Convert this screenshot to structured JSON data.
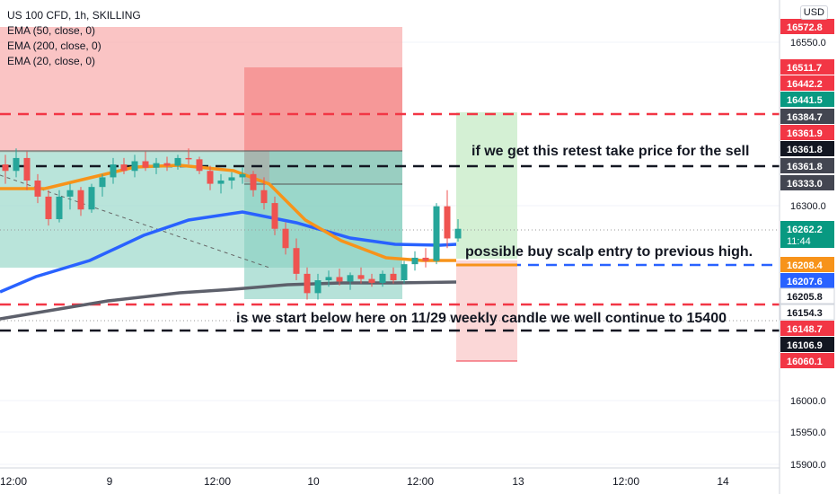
{
  "legend": {
    "title": "US 100 CFD, 1h, SKILLING",
    "ema1": "EMA (50, close, 0)",
    "ema2": "EMA (200, close, 0)",
    "ema3": "EMA (20, close, 0)"
  },
  "currency": "USD",
  "annotations": {
    "sell_note": "if we get this retest take price for the sell",
    "buy_note": "possible buy scalp entry to previous high.",
    "weekly_note": "is we start below here on 11/29 weekly candle we well continue to 15400"
  },
  "chart_data": {
    "type": "candlestick",
    "title": "US 100 CFD, 1h, SKILLING",
    "ylim": [
      15900,
      16600
    ],
    "y_ticks": [
      16550.0,
      16300.0,
      16000.0,
      15950.0,
      15900.0
    ],
    "x_ticks": [
      "12:00",
      "9",
      "12:00",
      "10",
      "12:00",
      "13",
      "12:00",
      "14"
    ],
    "price_labels": [
      {
        "value": "16572.8",
        "color": "#f23645"
      },
      {
        "value": "16511.7",
        "color": "#f23645"
      },
      {
        "value": "16442.2",
        "color": "#f23645"
      },
      {
        "value": "16441.5",
        "color": "#089981"
      },
      {
        "value": "16384.7",
        "color": "#434651"
      },
      {
        "value": "16361.9",
        "color": "#f23645"
      },
      {
        "value": "16361.8",
        "color": "#131722"
      },
      {
        "value": "16361.8",
        "color": "#434651"
      },
      {
        "value": "16333.0",
        "color": "#434651"
      },
      {
        "value": "16262.2",
        "sub": "11:44",
        "color": "#089981"
      },
      {
        "value": "16208.4",
        "color": "#f7931a"
      },
      {
        "value": "16207.6",
        "color": "#2962ff"
      },
      {
        "value": "16205.8",
        "color": "#ffffff"
      },
      {
        "value": "16154.3",
        "color": "#ffffff"
      },
      {
        "value": "16148.7",
        "color": "#f23645"
      },
      {
        "value": "16106.9",
        "color": "#131722"
      },
      {
        "value": "16060.1",
        "color": "#f23645"
      }
    ],
    "candles": [
      [
        16360,
        16375,
        16330,
        16350
      ],
      [
        16350,
        16385,
        16340,
        16370
      ],
      [
        16370,
        16380,
        16320,
        16335
      ],
      [
        16335,
        16345,
        16300,
        16310
      ],
      [
        16310,
        16320,
        16265,
        16275
      ],
      [
        16275,
        16320,
        16270,
        16310
      ],
      [
        16310,
        16330,
        16290,
        16320
      ],
      [
        16320,
        16325,
        16280,
        16290
      ],
      [
        16290,
        16330,
        16285,
        16325
      ],
      [
        16325,
        16345,
        16310,
        16340
      ],
      [
        16340,
        16370,
        16330,
        16360
      ],
      [
        16360,
        16370,
        16345,
        16350
      ],
      [
        16350,
        16375,
        16340,
        16365
      ],
      [
        16365,
        16380,
        16350,
        16355
      ],
      [
        16355,
        16370,
        16345,
        16362
      ],
      [
        16362,
        16372,
        16350,
        16358
      ],
      [
        16358,
        16375,
        16352,
        16370
      ],
      [
        16370,
        16385,
        16360,
        16368
      ],
      [
        16368,
        16372,
        16345,
        16350
      ],
      [
        16350,
        16358,
        16320,
        16330
      ],
      [
        16330,
        16345,
        16315,
        16335
      ],
      [
        16335,
        16348,
        16322,
        16340
      ],
      [
        16340,
        16355,
        16330,
        16345
      ],
      [
        16345,
        16350,
        16310,
        16320
      ],
      [
        16320,
        16340,
        16290,
        16300
      ],
      [
        16300,
        16310,
        16250,
        16260
      ],
      [
        16260,
        16270,
        16220,
        16230
      ],
      [
        16230,
        16245,
        16180,
        16190
      ],
      [
        16190,
        16200,
        16150,
        16160
      ],
      [
        16160,
        16190,
        16150,
        16180
      ],
      [
        16180,
        16195,
        16170,
        16185
      ],
      [
        16185,
        16198,
        16172,
        16178
      ],
      [
        16178,
        16192,
        16165,
        16188
      ],
      [
        16188,
        16200,
        16175,
        16182
      ],
      [
        16182,
        16190,
        16170,
        16176
      ],
      [
        16176,
        16195,
        16170,
        16190
      ],
      [
        16190,
        16200,
        16175,
        16180
      ],
      [
        16180,
        16210,
        16175,
        16205
      ],
      [
        16205,
        16225,
        16195,
        16215
      ],
      [
        16215,
        16230,
        16200,
        16210
      ],
      [
        16210,
        16300,
        16205,
        16295
      ],
      [
        16295,
        16320,
        16230,
        16245
      ],
      [
        16245,
        16275,
        16240,
        16260
      ]
    ]
  }
}
